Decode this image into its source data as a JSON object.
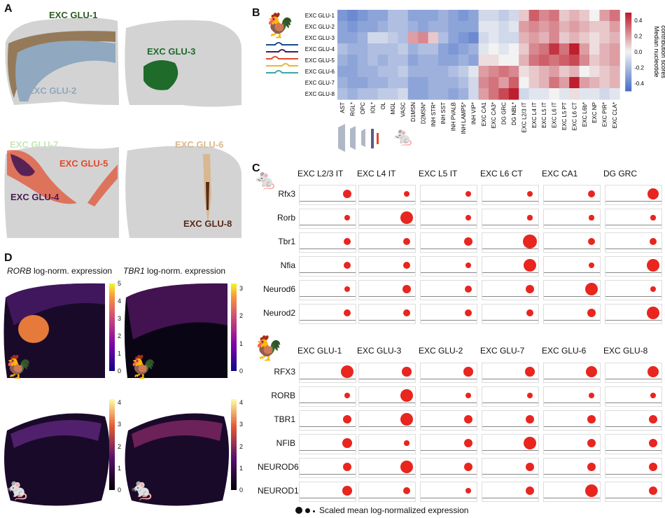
{
  "panels": {
    "a": "A",
    "b": "B",
    "c": "C",
    "d": "D"
  },
  "panel_a": {
    "labels": {
      "glu1": "EXC GLU-1",
      "glu2": "EXC GLU-2",
      "glu3": "EXC GLU-3",
      "glu4": "EXC GLU-4",
      "glu5": "EXC GLU-5",
      "glu6": "EXC GLU-6",
      "glu7": "EXC GLU-7",
      "glu8": "EXC GLU-8"
    },
    "colors": {
      "glu1": "#8a6a44",
      "glu2": "#90a8c0",
      "glu3": "#1e6b2a",
      "glu4": "#4a1a55",
      "glu5": "#e24a2a",
      "glu6": "#d8b890",
      "glu7": "#c8e6b8",
      "glu8": "#5a2a1a"
    }
  },
  "chart_data": {
    "type": "heatmap",
    "title": "",
    "rows": [
      "EXC GLU-1",
      "EXC GLU-2",
      "EXC GLU-3",
      "EXC GLU-4",
      "EXC GLU-5",
      "EXC GLU-6",
      "EXC GLU-7",
      "EXC GLU-8"
    ],
    "columns": [
      "AST",
      "RGL*",
      "OPC",
      "IOL*",
      "OL",
      "MGL",
      "VASC",
      "D1MSN",
      "D2MSN*",
      "INH STR*",
      "INH SST",
      "INH PVALB",
      "INH LAMP5*",
      "INH VIP*",
      "EXC CA1",
      "EXC CA3*",
      "DG GRC",
      "DG NBL*",
      "EXC L2/3 IT",
      "EXC L4 IT",
      "EXC L5 IT",
      "EXC L6 IT",
      "EXC L5 PT",
      "EXC L6 CT",
      "EXC L6b*",
      "EXC NP",
      "EXC PIR*",
      "EXC CLA*"
    ],
    "values": [
      [
        -0.35,
        -0.4,
        -0.35,
        -0.3,
        -0.3,
        -0.2,
        -0.2,
        -0.3,
        -0.3,
        -0.3,
        -0.25,
        -0.3,
        -0.35,
        -0.3,
        -0.1,
        -0.1,
        -0.15,
        -0.1,
        0.1,
        0.35,
        0.25,
        0.3,
        0.1,
        0.15,
        0.1,
        0.0,
        0.2,
        0.3
      ],
      [
        -0.3,
        -0.35,
        -0.3,
        -0.3,
        -0.25,
        -0.2,
        -0.2,
        -0.25,
        -0.3,
        -0.25,
        -0.25,
        -0.3,
        -0.3,
        -0.3,
        -0.05,
        -0.05,
        -0.1,
        -0.05,
        0.2,
        0.25,
        0.2,
        0.25,
        0.15,
        0.2,
        0.15,
        0.1,
        0.1,
        0.2
      ],
      [
        -0.3,
        -0.3,
        -0.25,
        -0.1,
        -0.1,
        -0.15,
        -0.2,
        0.2,
        0.25,
        0.1,
        -0.2,
        -0.3,
        -0.35,
        -0.4,
        -0.1,
        -0.05,
        -0.1,
        -0.1,
        0.15,
        0.2,
        0.15,
        0.25,
        0.1,
        0.15,
        0.1,
        0.05,
        0.1,
        0.15
      ],
      [
        -0.2,
        -0.25,
        -0.25,
        -0.2,
        -0.2,
        -0.2,
        -0.15,
        -0.25,
        -0.2,
        -0.2,
        -0.3,
        -0.35,
        -0.3,
        -0.25,
        -0.05,
        0.0,
        -0.05,
        0.0,
        0.1,
        0.25,
        0.3,
        0.45,
        0.3,
        0.5,
        0.2,
        0.05,
        0.15,
        0.2
      ],
      [
        -0.25,
        -0.3,
        -0.25,
        -0.2,
        -0.25,
        -0.2,
        -0.2,
        -0.3,
        -0.25,
        -0.25,
        -0.3,
        -0.3,
        -0.25,
        -0.3,
        0.05,
        0.05,
        0.0,
        0.0,
        0.15,
        0.3,
        0.35,
        0.3,
        0.35,
        0.4,
        0.25,
        0.1,
        0.15,
        0.2
      ],
      [
        -0.3,
        -0.3,
        -0.25,
        -0.25,
        -0.2,
        -0.2,
        -0.15,
        -0.25,
        -0.25,
        -0.25,
        -0.25,
        -0.2,
        -0.15,
        -0.05,
        0.2,
        0.25,
        0.3,
        0.25,
        0.05,
        0.1,
        0.15,
        0.2,
        0.1,
        0.15,
        0.0,
        0.05,
        0.1,
        0.15
      ],
      [
        -0.25,
        -0.3,
        -0.3,
        -0.25,
        -0.25,
        -0.2,
        -0.2,
        -0.3,
        -0.3,
        -0.25,
        -0.25,
        -0.25,
        -0.2,
        -0.1,
        0.25,
        0.3,
        0.2,
        0.35,
        0.0,
        0.1,
        0.15,
        0.3,
        0.2,
        0.5,
        0.2,
        0.15,
        0.1,
        0.15
      ],
      [
        -0.2,
        -0.25,
        -0.2,
        -0.2,
        -0.15,
        -0.15,
        -0.1,
        -0.3,
        -0.3,
        -0.25,
        -0.25,
        -0.3,
        -0.25,
        -0.1,
        0.2,
        0.3,
        0.4,
        0.55,
        -0.1,
        -0.05,
        -0.05,
        0.0,
        -0.05,
        0.05,
        -0.05,
        -0.05,
        -0.1,
        -0.05
      ]
    ],
    "colorbar": {
      "label": "Median nucleotide contribution scores correlation",
      "ticks": [
        "0.4",
        "0.2",
        "0.0",
        "-0.2",
        "-0.4"
      ],
      "min": -0.5,
      "max": 0.5
    }
  },
  "panel_c": {
    "mouse_types": [
      "EXC L2/3 IT",
      "EXC L4 IT",
      "EXC L5 IT",
      "EXC L6 CT",
      "EXC CA1",
      "DG GRC"
    ],
    "mouse_tfs": [
      "Rfx3",
      "Rorb",
      "Tbr1",
      "Nfia",
      "Neurod6",
      "Neurod2"
    ],
    "chicken_types": [
      "EXC GLU-1",
      "EXC GLU-3",
      "EXC GLU-2",
      "EXC GLU-7",
      "EXC GLU-6",
      "EXC GLU-8"
    ],
    "chicken_tfs": [
      "RFX3",
      "RORB",
      "TBR1",
      "NFIB",
      "NEUROD6",
      "NEUROD1"
    ],
    "mouse_dots": [
      [
        0.5,
        0.3,
        0.3,
        0.3,
        0.4,
        0.8
      ],
      [
        0.3,
        0.9,
        0.3,
        0.2,
        0.2,
        0.2
      ],
      [
        0.4,
        0.4,
        0.5,
        1.0,
        0.4,
        0.4
      ],
      [
        0.4,
        0.4,
        0.3,
        0.9,
        0.3,
        0.9
      ],
      [
        0.3,
        0.5,
        0.4,
        0.5,
        0.9,
        0.3
      ],
      [
        0.4,
        0.4,
        0.4,
        0.4,
        0.5,
        0.9
      ]
    ],
    "chicken_dots": [
      [
        0.9,
        0.6,
        0.6,
        0.6,
        0.8,
        0.8
      ],
      [
        0.3,
        0.9,
        0.3,
        0.3,
        0.3,
        0.3
      ],
      [
        0.5,
        0.9,
        0.5,
        0.5,
        0.5,
        0.5
      ],
      [
        0.6,
        0.2,
        0.5,
        0.9,
        0.5,
        0.5
      ],
      [
        0.5,
        0.9,
        0.5,
        0.5,
        0.5,
        0.5
      ],
      [
        0.6,
        0.4,
        0.3,
        0.5,
        0.9,
        0.5
      ]
    ],
    "legend": "Scaled mean log-normalized expression"
  },
  "panel_d": {
    "title_rorb_gene": "RORB",
    "title_rorb_rest": " log-norm. expression",
    "title_tbr1_gene": "TBR1",
    "title_tbr1_rest": " log-norm. expression",
    "cb1_ticks": [
      "5",
      "4",
      "3",
      "2",
      "1",
      "0"
    ],
    "cb2_ticks": [
      "3",
      "2",
      "1",
      "0"
    ],
    "cb3_ticks": [
      "4",
      "3",
      "2",
      "1",
      "0"
    ],
    "cb4_ticks": [
      "4",
      "3",
      "2",
      "1",
      "0"
    ]
  }
}
